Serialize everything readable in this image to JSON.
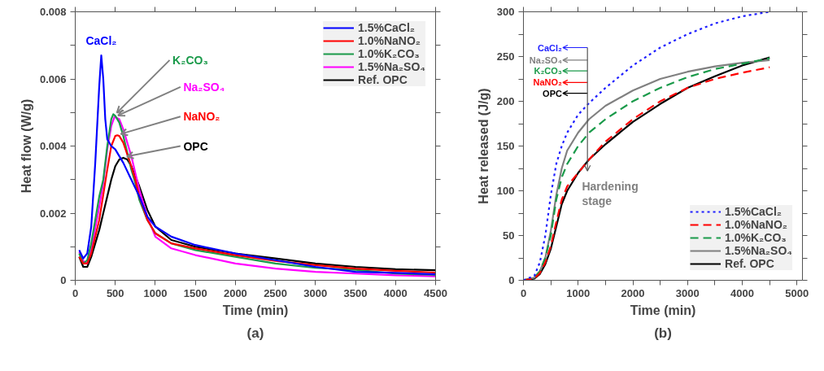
{
  "chart_data": [
    {
      "type": "line",
      "xlabel": "Time (min)",
      "ylabel": "Heat flow (W/g)",
      "xlim": [
        0,
        4500
      ],
      "ylim": [
        0,
        0.008
      ],
      "xticks": [
        0,
        500,
        1000,
        1500,
        2000,
        2500,
        3000,
        3500,
        4000,
        4500
      ],
      "yticks": [
        0,
        {
          "value": 0.001,
          "label": null
        },
        0.002,
        {
          "value": 0.003,
          "label": null
        },
        0.004,
        {
          "value": 0.005,
          "label": null
        },
        0.006,
        {
          "value": 0.007,
          "label": null
        },
        0.008
      ],
      "grid": false,
      "legend": "top right",
      "line_style": "solid",
      "series": [
        {
          "name": "1.5%CaCl₂",
          "color": "#0000ff",
          "x": [
            50,
            100,
            150,
            200,
            250,
            300,
            325,
            350,
            375,
            400,
            450,
            500,
            550,
            600,
            700,
            800,
            900,
            1000,
            1200,
            1500,
            2000,
            2500,
            3000,
            3500,
            4000,
            4500
          ],
          "values": [
            0.0009,
            0.00065,
            0.0008,
            0.0016,
            0.0035,
            0.0058,
            0.0067,
            0.006,
            0.0048,
            0.0042,
            0.004,
            0.0039,
            0.0037,
            0.0035,
            0.003,
            0.0025,
            0.0019,
            0.0016,
            0.0013,
            0.00105,
            0.0008,
            0.0006,
            0.0004,
            0.00025,
            0.00022,
            0.00018
          ]
        },
        {
          "name": "1.0%NaNO₂",
          "color": "#ff0000",
          "x": [
            50,
            100,
            150,
            200,
            300,
            400,
            450,
            500,
            525,
            550,
            600,
            700,
            750,
            800,
            900,
            1000,
            1200,
            1500,
            2000,
            2500,
            3000,
            3500,
            4000,
            4500
          ],
          "values": [
            0.0007,
            0.0005,
            0.0005,
            0.0008,
            0.0018,
            0.0033,
            0.004,
            0.0043,
            0.00432,
            0.0043,
            0.0041,
            0.0034,
            0.003,
            0.0025,
            0.0018,
            0.0014,
            0.0011,
            0.00095,
            0.00075,
            0.00058,
            0.00045,
            0.00035,
            0.00028,
            0.00023
          ]
        },
        {
          "name": "1.0%K₂CO₃",
          "color": "#1a9a4a",
          "x": [
            50,
            100,
            150,
            200,
            300,
            350,
            400,
            450,
            475,
            500,
            550,
            600,
            700,
            750,
            800,
            900,
            1000,
            1200,
            1500,
            2000,
            2500,
            3000,
            3500,
            4000,
            4500
          ],
          "values": [
            0.0008,
            0.0005,
            0.0006,
            0.0011,
            0.0025,
            0.003,
            0.004,
            0.0048,
            0.00495,
            0.0049,
            0.0047,
            0.0043,
            0.0033,
            0.0029,
            0.0024,
            0.0018,
            0.0014,
            0.0011,
            0.0009,
            0.0007,
            0.0005,
            0.00037,
            0.00031,
            0.0002,
            0.00016
          ]
        },
        {
          "name": "1.5%Na₂SO₄",
          "color": "#ff00ff",
          "x": [
            50,
            100,
            150,
            200,
            300,
            350,
            400,
            450,
            490,
            550,
            600,
            700,
            750,
            800,
            900,
            1000,
            1200,
            1500,
            2000,
            2500,
            3000,
            3500,
            4000,
            4500
          ],
          "values": [
            0.00085,
            0.00058,
            0.0005,
            0.0009,
            0.0022,
            0.0029,
            0.0039,
            0.0046,
            0.00487,
            0.0048,
            0.0045,
            0.0037,
            0.0032,
            0.0027,
            0.0019,
            0.0013,
            0.00095,
            0.00075,
            0.0005,
            0.00035,
            0.00025,
            0.0002,
            0.00015,
            0.00012
          ]
        },
        {
          "name": "Ref. OPC",
          "color": "#000000",
          "x": [
            50,
            100,
            150,
            200,
            300,
            400,
            450,
            500,
            550,
            600,
            650,
            700,
            800,
            900,
            1000,
            1200,
            1500,
            2000,
            2500,
            3000,
            3500,
            4000,
            4500
          ],
          "values": [
            0.0007,
            0.0004,
            0.0004,
            0.0007,
            0.0015,
            0.0025,
            0.003,
            0.0034,
            0.0036,
            0.00365,
            0.0036,
            0.0034,
            0.0028,
            0.0021,
            0.0016,
            0.0012,
            0.001,
            0.0008,
            0.00065,
            0.0005,
            0.0004,
            0.00033,
            0.0003
          ]
        }
      ],
      "annotations": [
        {
          "text": "CaCl₂",
          "x": 325,
          "y": 0.0067
        },
        {
          "text": "K₂CO₃",
          "x": 475,
          "y": 0.00495
        },
        {
          "text": "Na₂SO₄",
          "x": 490,
          "y": 0.00487
        },
        {
          "text": "NaNO₂",
          "x": 525,
          "y": 0.00432
        },
        {
          "text": "OPC",
          "x": 600,
          "y": 0.00365
        },
        "(a)"
      ]
    },
    {
      "type": "line",
      "xlabel": "Time (min)",
      "ylabel": "Heat released (J/g)",
      "xlim": [
        0,
        5100
      ],
      "ylim": [
        0,
        300
      ],
      "xticks": [
        0,
        {
          "value": 500,
          "label": null
        },
        1000,
        {
          "value": 1500,
          "label": null
        },
        2000,
        {
          "value": 2500,
          "label": null
        },
        3000,
        {
          "value": 3500,
          "label": null
        },
        4000,
        {
          "value": 4500,
          "label": null
        },
        5000
      ],
      "yticks": [
        0,
        {
          "value": 25,
          "label": null
        },
        50,
        {
          "value": 75,
          "label": null
        },
        100,
        {
          "value": 125,
          "label": null
        },
        150,
        {
          "value": 175,
          "label": null
        },
        200,
        {
          "value": 225,
          "label": null
        },
        250,
        {
          "value": 275,
          "label": null
        },
        300
      ],
      "grid": false,
      "legend": "bottom right",
      "x": [
        0,
        200,
        300,
        400,
        500,
        600,
        700,
        800,
        1000,
        1200,
        1500,
        2000,
        2500,
        3000,
        3500,
        4000,
        4500
      ],
      "series": [
        {
          "name": "1.5%CaCl₂",
          "color": "#1f1fff",
          "line_style": "dotted",
          "values": [
            0,
            5,
            20,
            50,
            95,
            130,
            150,
            165,
            185,
            198,
            215,
            240,
            260,
            275,
            287,
            295,
            300
          ]
        },
        {
          "name": "1.0%NaNO₂",
          "color": "#ff0000",
          "line_style": "dashed",
          "values": [
            0,
            2,
            8,
            20,
            38,
            65,
            90,
            105,
            120,
            135,
            155,
            180,
            200,
            215,
            225,
            232,
            238
          ]
        },
        {
          "name": "1.0%K₂CO₃",
          "color": "#1a9a4a",
          "line_style": "dashed",
          "values": [
            0,
            3,
            10,
            25,
            50,
            90,
            115,
            130,
            150,
            165,
            180,
            200,
            215,
            227,
            236,
            242,
            248
          ]
        },
        {
          "name": "1.5%Na₂SO₄",
          "color": "#808080",
          "line_style": "solid",
          "values": [
            0,
            3,
            10,
            25,
            55,
            95,
            125,
            145,
            165,
            180,
            195,
            212,
            225,
            233,
            239,
            243,
            246
          ]
        },
        {
          "name": "Ref. OPC",
          "color": "#000000",
          "line_style": "solid",
          "values": [
            0,
            2,
            7,
            18,
            35,
            60,
            85,
            100,
            120,
            135,
            152,
            177,
            197,
            215,
            228,
            240,
            249
          ]
        }
      ],
      "annotations": [
        "CaCl₂",
        "Na₂SO₄",
        "K₂CO₃",
        "NaNO₂",
        "OPC",
        "Hardening stage",
        "(b)"
      ]
    }
  ]
}
